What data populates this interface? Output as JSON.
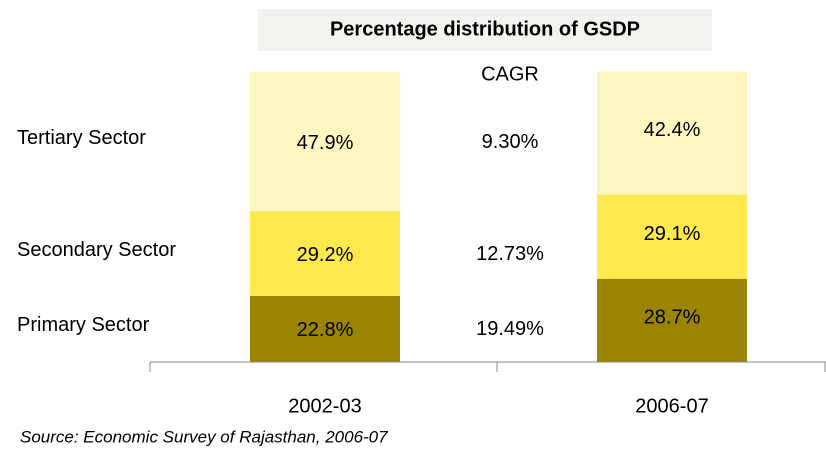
{
  "chart_data": {
    "type": "stacked-bar",
    "title": "Percentage distribution of GSDP",
    "categories": [
      "2002-03",
      "2006-07"
    ],
    "series": [
      {
        "name": "Primary Sector",
        "color": "#9b8500",
        "values": [
          22.8,
          28.7
        ],
        "value_labels": [
          "22.8%",
          "28.7%"
        ]
      },
      {
        "name": "Secondary Sector",
        "color": "#fde84e",
        "values": [
          29.2,
          29.1
        ],
        "value_labels": [
          "29.2%",
          "29.1%"
        ]
      },
      {
        "name": "Tertiary Sector",
        "color": "#fef6c0",
        "values": [
          47.9,
          42.4
        ],
        "value_labels": [
          "47.9%",
          "42.4%"
        ]
      }
    ],
    "cagr": {
      "label": "CAGR",
      "values": [
        19.49,
        12.73,
        9.3
      ],
      "value_labels": [
        "19.49%",
        "12.73%",
        "9.30%"
      ]
    },
    "ylim": [
      0,
      100
    ],
    "source": "Source: Economic Survey of Rajasthan, 2006-07"
  }
}
